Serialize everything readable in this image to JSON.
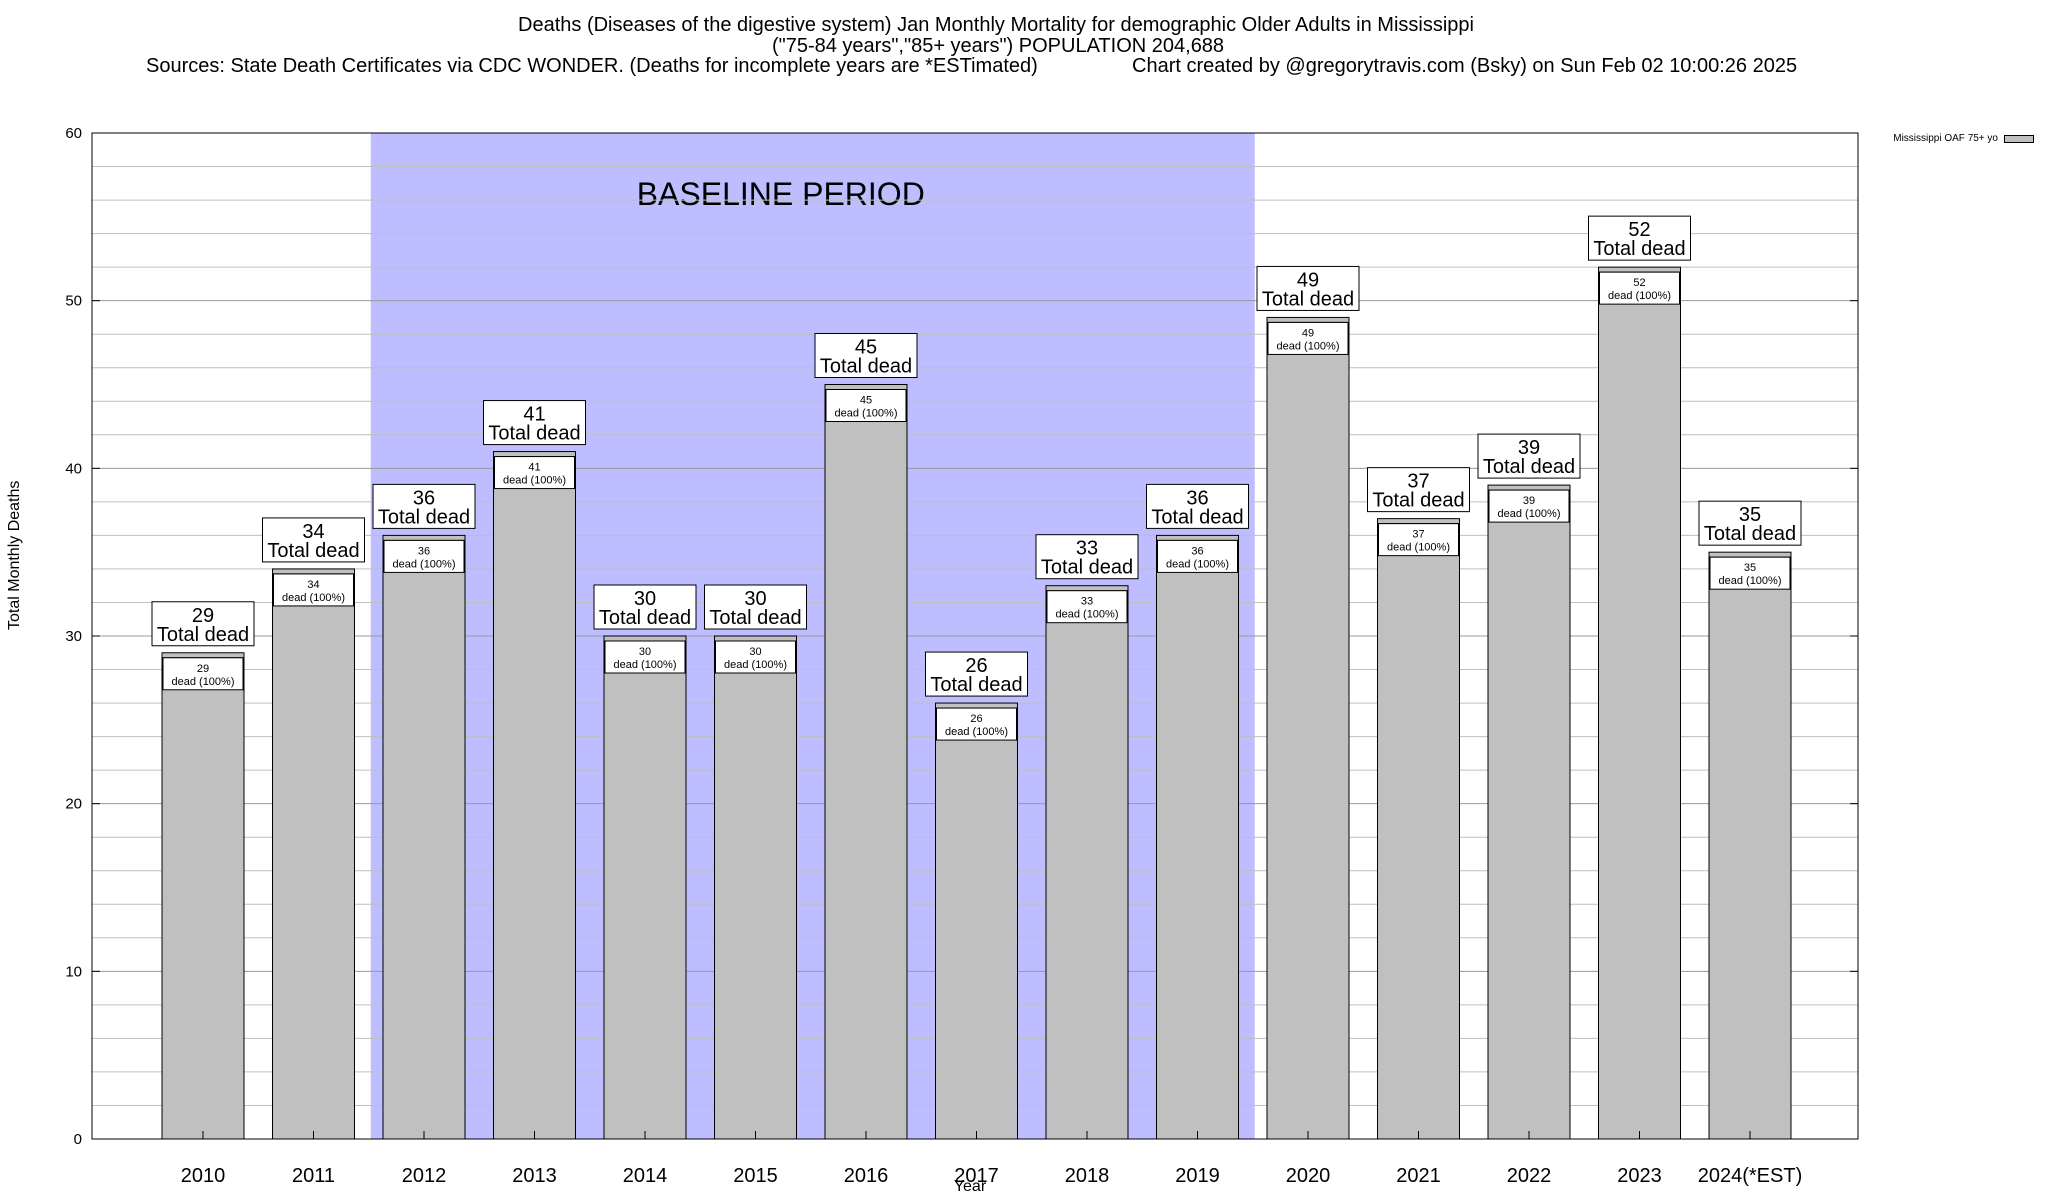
{
  "header": {
    "line1": "Deaths (Diseases of the digestive system) Jan Monthly Mortality for demographic Older Adults in Mississippi",
    "line2": "(\"75-84 years\",\"85+ years\") POPULATION 204,688",
    "line3": "Sources: State Death Certificates via CDC WONDER. (Deaths for incomplete years are *ESTimated)",
    "line4": "Chart created by @gregorytravis.com (Bsky) on Sun Feb 02 10:00:26 2025"
  },
  "chart_data": {
    "type": "bar",
    "title": "Deaths (Diseases of the digestive system) Jan Monthly Mortality for demographic Older Adults in Mississippi",
    "xlabel": "Year",
    "ylabel": "Total Monthly Deaths",
    "ylim": [
      0,
      60
    ],
    "yticks": [
      0,
      10,
      20,
      30,
      40,
      50,
      60
    ],
    "categories": [
      "2010",
      "2011",
      "2012",
      "2013",
      "2014",
      "2015",
      "2016",
      "2017",
      "2018",
      "2019",
      "2020",
      "2021",
      "2022",
      "2023",
      "2024(*EST)"
    ],
    "series": [
      {
        "name": "Mississippi OAF 75+ yo",
        "color": "#c0c0c0",
        "values": [
          29,
          34,
          36,
          41,
          30,
          30,
          45,
          26,
          33,
          36,
          49,
          37,
          39,
          52,
          35
        ]
      }
    ],
    "top_label_suffix": "Total dead",
    "inner_label_suffix": "dead (100%)",
    "baseline": {
      "label": "BASELINE PERIOD",
      "from": "2012",
      "to": "2019",
      "color": "#bdbdff"
    },
    "grid": true,
    "legend_position": "top-right"
  }
}
